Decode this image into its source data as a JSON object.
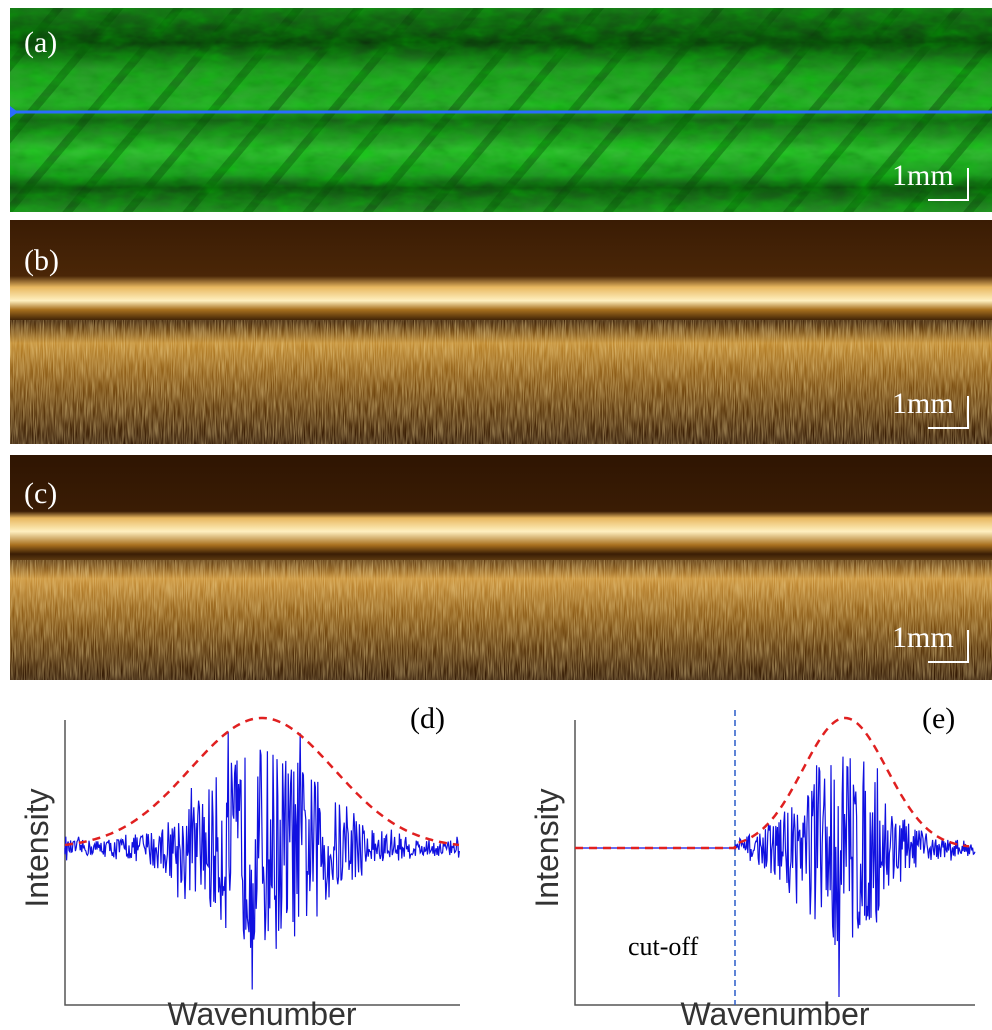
{
  "panels": {
    "a": {
      "label": "(a)",
      "scale": "1mm"
    },
    "b": {
      "label": "(b)",
      "scale": "1mm"
    },
    "c": {
      "label": "(c)",
      "scale": "1mm"
    },
    "d": {
      "label": "(d)",
      "y_label": "Intensity",
      "x_label": "Wavenumber"
    },
    "e": {
      "label": "(e)",
      "y_label": "Intensity",
      "x_label": "Wavenumber",
      "annotation": "cut-off"
    }
  }
}
